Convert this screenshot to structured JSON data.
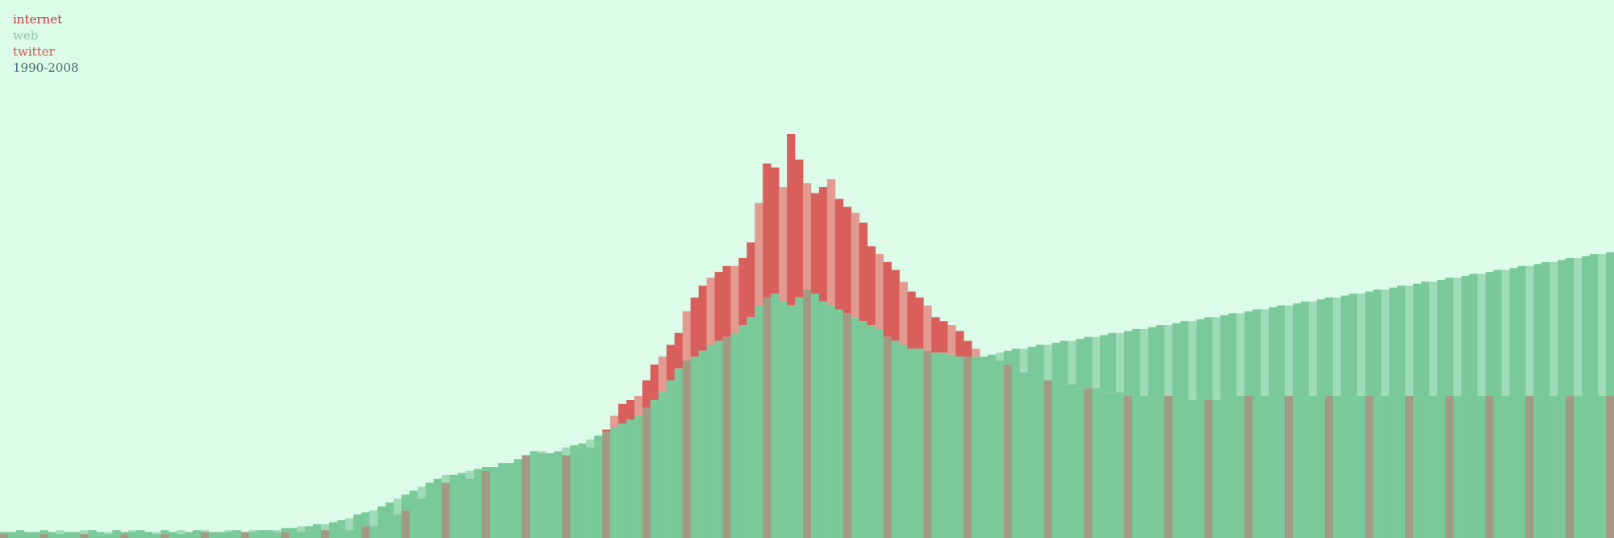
{
  "legend": {
    "items": [
      {
        "label": "internet",
        "color": "#c8333a"
      },
      {
        "label": "web",
        "color": "#8fc7a6"
      },
      {
        "label": "twitter",
        "color": "#d9584e"
      },
      {
        "label": "1990-2008",
        "color": "#3f6a70"
      }
    ]
  },
  "chart_data": {
    "type": "bar",
    "title": "",
    "xlabel": "",
    "ylabel": "",
    "x_range": [
      "1990",
      "2008"
    ],
    "grid": false,
    "legend_position": "top-left",
    "colors": {
      "background": "#ddfbe9",
      "internet": "#d95f5c",
      "internet_light": "#e39a90",
      "web": "#79c99a",
      "web_light": "#9fdbb7",
      "overlap": "#a29a82"
    },
    "series": [
      {
        "name": "internet",
        "values": [
          2,
          3,
          2,
          2,
          3,
          2,
          3,
          2,
          3,
          2,
          2,
          3,
          2,
          2,
          3,
          2,
          3,
          2,
          3,
          2,
          2,
          3,
          2,
          3,
          2,
          3,
          2,
          3,
          3,
          2,
          3,
          3,
          2,
          3,
          3,
          3,
          3,
          3,
          4,
          3,
          4,
          4,
          5,
          4,
          5,
          6,
          6,
          8,
          9,
          12,
          14,
          18,
          20,
          22,
          26,
          28,
          30,
          32,
          30,
          32,
          34,
          36,
          38,
          37,
          40,
          42,
          44,
          43,
          41,
          40,
          42,
          44,
          43,
          46,
          48,
          55,
          62,
          68,
          70,
          72,
          80,
          88,
          92,
          98,
          104,
          115,
          122,
          128,
          132,
          135,
          138,
          138,
          142,
          150,
          170,
          190,
          188,
          178,
          205,
          192,
          180,
          175,
          178,
          182,
          172,
          168,
          165,
          160,
          148,
          144,
          140,
          136,
          130,
          125,
          122,
          118,
          112,
          110,
          108,
          105,
          100,
          96,
          92,
          90,
          90,
          88,
          86,
          84,
          84,
          82,
          80,
          80,
          78,
          78,
          76,
          76,
          76,
          74,
          74,
          74,
          72,
          72,
          72,
          70,
          72,
          72,
          70,
          70,
          70,
          72,
          70,
          70,
          70,
          70,
          72,
          72,
          72,
          72,
          72,
          72,
          72,
          72,
          72,
          72,
          72,
          72,
          72,
          72,
          72,
          72,
          72,
          72,
          72,
          72,
          72,
          72,
          72,
          72,
          72,
          72,
          72,
          72,
          72,
          72,
          72,
          72,
          72,
          72,
          72,
          72,
          72,
          72,
          72,
          72,
          72,
          72,
          72,
          72,
          72,
          72,
          72
        ]
      },
      {
        "name": "web",
        "values": [
          3,
          3,
          4,
          3,
          3,
          4,
          3,
          4,
          3,
          3,
          4,
          4,
          3,
          3,
          4,
          3,
          4,
          4,
          3,
          3,
          4,
          3,
          4,
          3,
          4,
          4,
          3,
          3,
          4,
          4,
          3,
          4,
          4,
          4,
          4,
          5,
          5,
          6,
          6,
          7,
          7,
          8,
          9,
          10,
          12,
          13,
          14,
          16,
          18,
          20,
          22,
          24,
          26,
          28,
          30,
          32,
          32,
          33,
          34,
          35,
          36,
          36,
          38,
          38,
          40,
          42,
          44,
          44,
          43,
          44,
          46,
          47,
          48,
          50,
          52,
          54,
          56,
          58,
          60,
          62,
          66,
          70,
          74,
          80,
          86,
          90,
          92,
          95,
          98,
          100,
          102,
          104,
          108,
          112,
          118,
          122,
          124,
          120,
          118,
          122,
          126,
          124,
          120,
          118,
          116,
          114,
          112,
          110,
          108,
          106,
          102,
          100,
          98,
          96,
          96,
          95,
          94,
          94,
          93,
          92,
          92,
          92,
          92,
          93,
          94,
          95,
          96,
          96,
          97,
          98,
          98,
          99,
          100,
          100,
          101,
          102,
          102,
          103,
          104,
          104,
          105,
          106,
          106,
          107,
          108,
          108,
          109,
          110,
          110,
          111,
          112,
          112,
          113,
          114,
          114,
          115,
          116,
          116,
          117,
          118,
          118,
          119,
          120,
          120,
          121,
          122,
          122,
          123,
          124,
          124,
          125,
          126,
          126,
          127,
          128,
          128,
          129,
          130,
          130,
          131,
          132,
          132,
          133,
          134,
          134,
          135,
          136,
          136,
          137,
          138,
          138,
          139,
          140,
          140,
          141,
          142,
          142,
          143,
          144,
          144,
          145
        ]
      }
    ]
  }
}
